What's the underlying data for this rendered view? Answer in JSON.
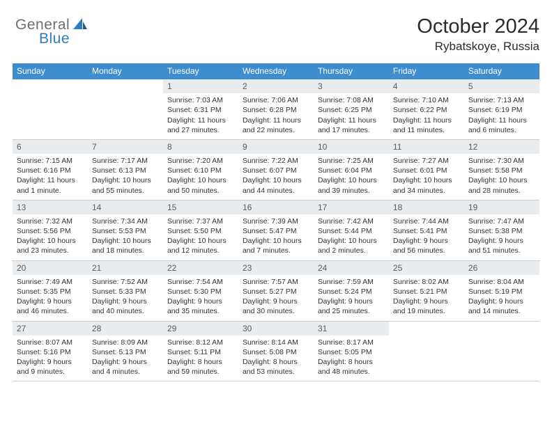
{
  "logo": {
    "text1": "General",
    "text2": "Blue"
  },
  "title": "October 2024",
  "location": "Rybatskoye, Russia",
  "colors": {
    "header_bg": "#3d8dcf",
    "header_text": "#ffffff",
    "daynum_bg": "#e8ecef",
    "border": "#cfcfcf",
    "logo_gray": "#6e6e6e",
    "logo_blue": "#2f7bc1"
  },
  "dayNames": [
    "Sunday",
    "Monday",
    "Tuesday",
    "Wednesday",
    "Thursday",
    "Friday",
    "Saturday"
  ],
  "weeks": [
    [
      null,
      null,
      {
        "d": "1",
        "sr": "Sunrise: 7:03 AM",
        "ss": "Sunset: 6:31 PM",
        "dl": "Daylight: 11 hours and 27 minutes."
      },
      {
        "d": "2",
        "sr": "Sunrise: 7:06 AM",
        "ss": "Sunset: 6:28 PM",
        "dl": "Daylight: 11 hours and 22 minutes."
      },
      {
        "d": "3",
        "sr": "Sunrise: 7:08 AM",
        "ss": "Sunset: 6:25 PM",
        "dl": "Daylight: 11 hours and 17 minutes."
      },
      {
        "d": "4",
        "sr": "Sunrise: 7:10 AM",
        "ss": "Sunset: 6:22 PM",
        "dl": "Daylight: 11 hours and 11 minutes."
      },
      {
        "d": "5",
        "sr": "Sunrise: 7:13 AM",
        "ss": "Sunset: 6:19 PM",
        "dl": "Daylight: 11 hours and 6 minutes."
      }
    ],
    [
      {
        "d": "6",
        "sr": "Sunrise: 7:15 AM",
        "ss": "Sunset: 6:16 PM",
        "dl": "Daylight: 11 hours and 1 minute."
      },
      {
        "d": "7",
        "sr": "Sunrise: 7:17 AM",
        "ss": "Sunset: 6:13 PM",
        "dl": "Daylight: 10 hours and 55 minutes."
      },
      {
        "d": "8",
        "sr": "Sunrise: 7:20 AM",
        "ss": "Sunset: 6:10 PM",
        "dl": "Daylight: 10 hours and 50 minutes."
      },
      {
        "d": "9",
        "sr": "Sunrise: 7:22 AM",
        "ss": "Sunset: 6:07 PM",
        "dl": "Daylight: 10 hours and 44 minutes."
      },
      {
        "d": "10",
        "sr": "Sunrise: 7:25 AM",
        "ss": "Sunset: 6:04 PM",
        "dl": "Daylight: 10 hours and 39 minutes."
      },
      {
        "d": "11",
        "sr": "Sunrise: 7:27 AM",
        "ss": "Sunset: 6:01 PM",
        "dl": "Daylight: 10 hours and 34 minutes."
      },
      {
        "d": "12",
        "sr": "Sunrise: 7:30 AM",
        "ss": "Sunset: 5:58 PM",
        "dl": "Daylight: 10 hours and 28 minutes."
      }
    ],
    [
      {
        "d": "13",
        "sr": "Sunrise: 7:32 AM",
        "ss": "Sunset: 5:56 PM",
        "dl": "Daylight: 10 hours and 23 minutes."
      },
      {
        "d": "14",
        "sr": "Sunrise: 7:34 AM",
        "ss": "Sunset: 5:53 PM",
        "dl": "Daylight: 10 hours and 18 minutes."
      },
      {
        "d": "15",
        "sr": "Sunrise: 7:37 AM",
        "ss": "Sunset: 5:50 PM",
        "dl": "Daylight: 10 hours and 12 minutes."
      },
      {
        "d": "16",
        "sr": "Sunrise: 7:39 AM",
        "ss": "Sunset: 5:47 PM",
        "dl": "Daylight: 10 hours and 7 minutes."
      },
      {
        "d": "17",
        "sr": "Sunrise: 7:42 AM",
        "ss": "Sunset: 5:44 PM",
        "dl": "Daylight: 10 hours and 2 minutes."
      },
      {
        "d": "18",
        "sr": "Sunrise: 7:44 AM",
        "ss": "Sunset: 5:41 PM",
        "dl": "Daylight: 9 hours and 56 minutes."
      },
      {
        "d": "19",
        "sr": "Sunrise: 7:47 AM",
        "ss": "Sunset: 5:38 PM",
        "dl": "Daylight: 9 hours and 51 minutes."
      }
    ],
    [
      {
        "d": "20",
        "sr": "Sunrise: 7:49 AM",
        "ss": "Sunset: 5:35 PM",
        "dl": "Daylight: 9 hours and 46 minutes."
      },
      {
        "d": "21",
        "sr": "Sunrise: 7:52 AM",
        "ss": "Sunset: 5:33 PM",
        "dl": "Daylight: 9 hours and 40 minutes."
      },
      {
        "d": "22",
        "sr": "Sunrise: 7:54 AM",
        "ss": "Sunset: 5:30 PM",
        "dl": "Daylight: 9 hours and 35 minutes."
      },
      {
        "d": "23",
        "sr": "Sunrise: 7:57 AM",
        "ss": "Sunset: 5:27 PM",
        "dl": "Daylight: 9 hours and 30 minutes."
      },
      {
        "d": "24",
        "sr": "Sunrise: 7:59 AM",
        "ss": "Sunset: 5:24 PM",
        "dl": "Daylight: 9 hours and 25 minutes."
      },
      {
        "d": "25",
        "sr": "Sunrise: 8:02 AM",
        "ss": "Sunset: 5:21 PM",
        "dl": "Daylight: 9 hours and 19 minutes."
      },
      {
        "d": "26",
        "sr": "Sunrise: 8:04 AM",
        "ss": "Sunset: 5:19 PM",
        "dl": "Daylight: 9 hours and 14 minutes."
      }
    ],
    [
      {
        "d": "27",
        "sr": "Sunrise: 8:07 AM",
        "ss": "Sunset: 5:16 PM",
        "dl": "Daylight: 9 hours and 9 minutes."
      },
      {
        "d": "28",
        "sr": "Sunrise: 8:09 AM",
        "ss": "Sunset: 5:13 PM",
        "dl": "Daylight: 9 hours and 4 minutes."
      },
      {
        "d": "29",
        "sr": "Sunrise: 8:12 AM",
        "ss": "Sunset: 5:11 PM",
        "dl": "Daylight: 8 hours and 59 minutes."
      },
      {
        "d": "30",
        "sr": "Sunrise: 8:14 AM",
        "ss": "Sunset: 5:08 PM",
        "dl": "Daylight: 8 hours and 53 minutes."
      },
      {
        "d": "31",
        "sr": "Sunrise: 8:17 AM",
        "ss": "Sunset: 5:05 PM",
        "dl": "Daylight: 8 hours and 48 minutes."
      },
      null,
      null
    ]
  ]
}
